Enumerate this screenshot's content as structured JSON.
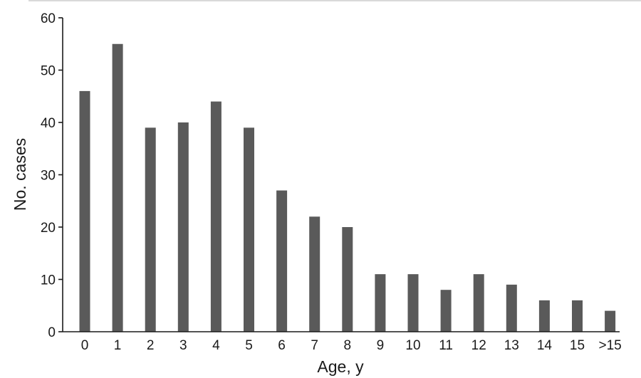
{
  "chart_data": {
    "type": "bar",
    "title": "",
    "xlabel": "Age, y",
    "ylabel": "No. cases",
    "categories": [
      "0",
      "1",
      "2",
      "3",
      "4",
      "5",
      "6",
      "7",
      "8",
      "9",
      "10",
      "11",
      "12",
      "13",
      "14",
      "15",
      ">15"
    ],
    "values": [
      46,
      55,
      39,
      40,
      44,
      39,
      27,
      22,
      20,
      11,
      11,
      8,
      11,
      9,
      6,
      6,
      4
    ],
    "ylim": [
      0,
      60
    ],
    "yticks": [
      0,
      10,
      20,
      30,
      40,
      50,
      60
    ],
    "grid": false,
    "bar_color": "#5a5a5a",
    "axis_color": "#1a1a1a",
    "top_rule_color": "#d9d9d9"
  }
}
